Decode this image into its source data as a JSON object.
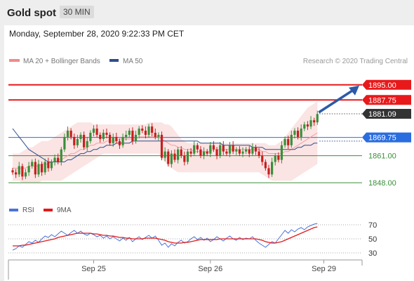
{
  "header": {
    "title": "Gold spot",
    "timeframe": "30 MIN"
  },
  "subheader": {
    "datetime": "Monday, September 28, 2020 9:22:33 PM CET"
  },
  "legend": {
    "ma20": "MA 20 + Bollinger Bands",
    "ma50": "MA 50",
    "credit": "Research © 2020 Trading Central",
    "rsi": "RSI",
    "ma9": "9MA"
  },
  "colors": {
    "resistance": "#e8191b",
    "current": "#333333",
    "pivot": "#2a6de0",
    "support": "#3a8f3a",
    "bull": "#3a8f3a",
    "bear": "#c81e1e",
    "bollinger": "#f7c3c3",
    "ma50": "#2d4e8a",
    "rsi": "#4a72d8",
    "ma9": "#e11b1b"
  },
  "chart_data": [
    {
      "type": "candlestick",
      "title": "Gold spot",
      "timeframe": "30 MIN",
      "ylim": [
        1843,
        1902
      ],
      "x_tick_labels": [
        "Sep 25",
        "Sep 26",
        "Sep 29"
      ],
      "levels": [
        {
          "label": "1895.00",
          "value": 1895.0,
          "kind": "resistance"
        },
        {
          "label": "1887.75",
          "value": 1887.75,
          "kind": "resistance"
        },
        {
          "label": "1881.09",
          "value": 1881.09,
          "kind": "current"
        },
        {
          "label": "1869.75",
          "value": 1869.75,
          "kind": "pivot"
        },
        {
          "label": "1861.00",
          "value": 1861.0,
          "kind": "support"
        },
        {
          "label": "1848.00",
          "value": 1848.0,
          "kind": "support"
        }
      ],
      "forecast_arrow": {
        "from": 1881.09,
        "to": 1895.0
      },
      "close": [
        1853,
        1852,
        1856,
        1851,
        1853,
        1856,
        1858,
        1852,
        1857,
        1853,
        1858,
        1855,
        1858,
        1860,
        1858,
        1864,
        1870,
        1873,
        1870,
        1866,
        1869,
        1871,
        1865,
        1868,
        1872,
        1874,
        1871,
        1869,
        1872,
        1871,
        1867,
        1870,
        1868,
        1866,
        1870,
        1871,
        1873,
        1868,
        1871,
        1874,
        1873,
        1871,
        1875,
        1872,
        1870,
        1871,
        1860,
        1863,
        1857,
        1862,
        1859,
        1864,
        1861,
        1858,
        1863,
        1862,
        1866,
        1864,
        1861,
        1863,
        1862,
        1866,
        1864,
        1861,
        1866,
        1863,
        1862,
        1866,
        1863,
        1864,
        1862,
        1863,
        1864,
        1862,
        1865,
        1863,
        1861,
        1858,
        1855,
        1852,
        1858,
        1861,
        1859,
        1866,
        1869,
        1866,
        1871,
        1873,
        1870,
        1874,
        1876,
        1875,
        1878,
        1877,
        1881
      ],
      "ma20": [
        1855,
        1855,
        1855,
        1855,
        1855,
        1856,
        1856,
        1856,
        1856,
        1857,
        1857,
        1857,
        1858,
        1858,
        1859,
        1859,
        1860,
        1861,
        1862,
        1862,
        1863,
        1864,
        1864,
        1865,
        1866,
        1866,
        1867,
        1867,
        1867,
        1868,
        1868,
        1868,
        1868,
        1869,
        1869,
        1869,
        1869,
        1869,
        1869,
        1870,
        1870,
        1870,
        1870,
        1870,
        1870,
        1870,
        1869,
        1868,
        1867,
        1866,
        1866,
        1865,
        1865,
        1864,
        1864,
        1864,
        1863,
        1863,
        1863,
        1863,
        1863,
        1863,
        1864,
        1864,
        1864,
        1864,
        1864,
        1864,
        1864,
        1864,
        1864,
        1864,
        1864,
        1864,
        1864,
        1864,
        1864,
        1863,
        1863,
        1862,
        1862,
        1862,
        1862,
        1862,
        1863,
        1863,
        1864,
        1865,
        1866,
        1867,
        1868,
        1869,
        1870,
        1871,
        1872
      ],
      "bb_upper": [
        1862,
        1862,
        1862,
        1863,
        1864,
        1865,
        1865,
        1866,
        1867,
        1868,
        1868,
        1868,
        1869,
        1870,
        1871,
        1872,
        1873,
        1874,
        1875,
        1876,
        1877,
        1877,
        1877,
        1877,
        1877,
        1876,
        1876,
        1876,
        1876,
        1876,
        1876,
        1876,
        1876,
        1876,
        1876,
        1876,
        1876,
        1876,
        1876,
        1876,
        1876,
        1876,
        1877,
        1877,
        1877,
        1877,
        1877,
        1876,
        1876,
        1875,
        1873,
        1871,
        1869,
        1868,
        1867,
        1867,
        1867,
        1867,
        1867,
        1867,
        1867,
        1867,
        1867,
        1867,
        1867,
        1867,
        1867,
        1867,
        1867,
        1867,
        1867,
        1867,
        1867,
        1867,
        1867,
        1867,
        1867,
        1867,
        1867,
        1866,
        1866,
        1866,
        1867,
        1868,
        1870,
        1872,
        1874,
        1876,
        1878,
        1880,
        1882,
        1884,
        1885,
        1886,
        1887
      ],
      "bb_lower": [
        1849,
        1849,
        1849,
        1848,
        1848,
        1848,
        1848,
        1848,
        1848,
        1849,
        1849,
        1849,
        1849,
        1849,
        1849,
        1849,
        1850,
        1851,
        1852,
        1853,
        1854,
        1855,
        1856,
        1857,
        1858,
        1859,
        1860,
        1861,
        1862,
        1862,
        1862,
        1862,
        1862,
        1862,
        1862,
        1862,
        1862,
        1862,
        1862,
        1862,
        1862,
        1862,
        1862,
        1862,
        1862,
        1862,
        1860,
        1858,
        1856,
        1855,
        1854,
        1853,
        1853,
        1853,
        1853,
        1853,
        1853,
        1853,
        1853,
        1853,
        1853,
        1853,
        1853,
        1853,
        1853,
        1853,
        1853,
        1853,
        1853,
        1853,
        1853,
        1853,
        1853,
        1853,
        1853,
        1853,
        1853,
        1852,
        1851,
        1850,
        1849,
        1849,
        1849,
        1849,
        1849,
        1849,
        1849,
        1850,
        1851,
        1852,
        1853,
        1854,
        1855,
        1856,
        1857
      ],
      "ma50": [
        1874,
        1872,
        1870,
        1868,
        1866,
        1864,
        1863,
        1862,
        1861,
        1860,
        1859,
        1858,
        1858,
        1858,
        1858,
        1858,
        1858,
        1859,
        1859,
        1860,
        1861,
        1862,
        1862,
        1863,
        1863,
        1864,
        1864,
        1865,
        1865,
        1866,
        1866,
        1866,
        1867,
        1867,
        1867,
        1867,
        1867,
        1868,
        1868,
        1868,
        1868,
        1868,
        1868,
        1868,
        1868,
        1868,
        1868,
        1868,
        1868,
        1868,
        1868,
        1868,
        1868,
        1868,
        1868,
        1868,
        1868,
        1868,
        1867,
        1867,
        1867,
        1867,
        1867,
        1867,
        1867,
        1866,
        1866,
        1866,
        1866,
        1866,
        1866,
        1866,
        1866,
        1866,
        1865,
        1865,
        1865,
        1865,
        1864,
        1864,
        1864,
        1864,
        1864,
        1864,
        1864,
        1864,
        1864,
        1864,
        1865,
        1865,
        1866,
        1866,
        1866,
        1867,
        1867
      ]
    },
    {
      "type": "line",
      "title": "RSI",
      "ylim": [
        20,
        80
      ],
      "y_tick_labels": [
        "70",
        "50",
        "30"
      ],
      "levels": [
        70,
        50,
        30
      ],
      "series": [
        {
          "name": "RSI",
          "values": [
            34,
            36,
            40,
            38,
            42,
            46,
            44,
            48,
            45,
            50,
            54,
            52,
            56,
            53,
            57,
            61,
            58,
            55,
            59,
            62,
            58,
            61,
            57,
            55,
            58,
            56,
            53,
            55,
            51,
            54,
            50,
            53,
            50,
            47,
            51,
            48,
            52,
            46,
            50,
            53,
            49,
            52,
            55,
            51,
            54,
            48,
            41,
            44,
            38,
            43,
            40,
            45,
            48,
            44,
            46,
            50,
            53,
            49,
            52,
            48,
            51,
            46,
            49,
            53,
            50,
            47,
            51,
            54,
            50,
            48,
            52,
            49,
            51,
            50,
            53,
            48,
            44,
            41,
            38,
            42,
            46,
            44,
            50,
            56,
            62,
            58,
            63,
            60,
            64,
            66,
            63,
            67,
            69,
            71,
            72
          ]
        },
        {
          "name": "9MA",
          "values": [
            40,
            40,
            40,
            41,
            41,
            42,
            43,
            44,
            45,
            46,
            47,
            48,
            49,
            50,
            52,
            53,
            54,
            55,
            56,
            57,
            58,
            58,
            58,
            58,
            58,
            57,
            57,
            56,
            55,
            55,
            54,
            54,
            53,
            52,
            52,
            51,
            51,
            50,
            50,
            50,
            50,
            51,
            51,
            51,
            51,
            50,
            49,
            48,
            46,
            45,
            44,
            44,
            44,
            45,
            45,
            46,
            47,
            48,
            49,
            49,
            49,
            49,
            49,
            49,
            50,
            50,
            50,
            50,
            50,
            50,
            50,
            50,
            50,
            50,
            50,
            50,
            49,
            48,
            46,
            45,
            44,
            44,
            45,
            46,
            48,
            50,
            52,
            54,
            56,
            58,
            60,
            62,
            64,
            66,
            67
          ]
        }
      ]
    }
  ]
}
